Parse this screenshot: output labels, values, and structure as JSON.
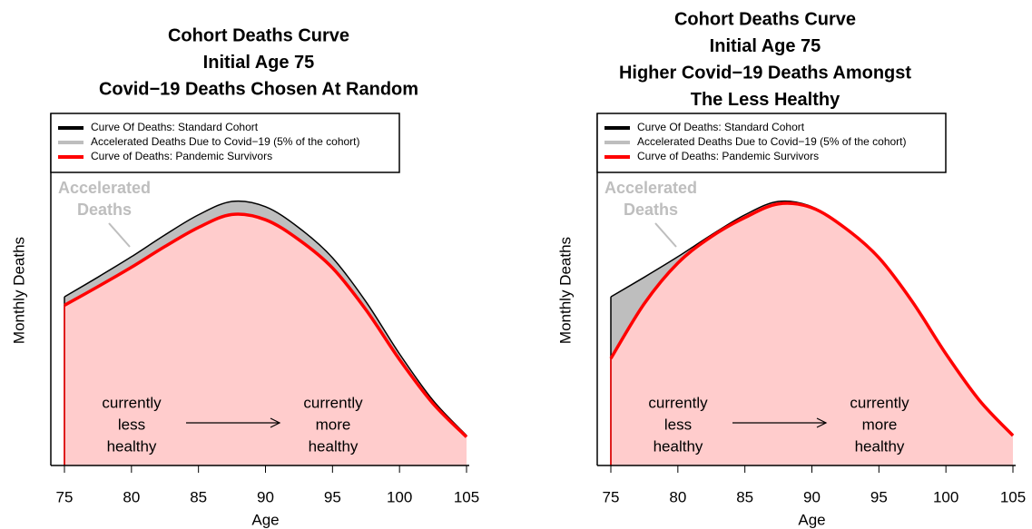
{
  "chart_data": [
    {
      "type": "area",
      "title": [
        "Cohort Deaths Curve",
        "Initial Age 75",
        "Covid−19 Deaths Chosen At Random"
      ],
      "xlabel": "Age",
      "ylabel": "Monthly Deaths",
      "x": [
        75,
        77.5,
        80,
        82.5,
        85,
        87.5,
        90,
        92.5,
        95,
        97.5,
        100,
        102.5,
        105
      ],
      "xlim": [
        75,
        105
      ],
      "xticks": [
        75,
        80,
        85,
        90,
        95,
        100,
        105
      ],
      "ylim": [
        0,
        100
      ],
      "series": [
        {
          "name": "Curve Of Deaths: Standard Cohort",
          "color": "#000000",
          "fill": "#bebebe",
          "values": [
            47.9,
            53.5,
            59.3,
            65.5,
            71.2,
            75.0,
            73.5,
            67.5,
            59.0,
            46.5,
            31.7,
            18.5,
            8.5
          ]
        },
        {
          "name": "Curve of Deaths: Pandemic Survivors",
          "color": "#ff0000",
          "fill": "#ffcccc",
          "values": [
            45.5,
            50.8,
            56.3,
            62.2,
            67.6,
            71.3,
            69.8,
            64.1,
            56.1,
            44.2,
            30.1,
            17.6,
            8.1
          ]
        }
      ],
      "fill_legend": {
        "name": "Accelerated Deaths Due to Covid−19 (5% of the cohort)",
        "color": "#bebebe"
      },
      "annotations": {
        "accelerated": [
          "Accelerated",
          "Deaths"
        ],
        "left": [
          "currently",
          "less",
          "healthy"
        ],
        "right": [
          "currently",
          "more",
          "healthy"
        ]
      }
    },
    {
      "type": "area",
      "title": [
        "Cohort Deaths Curve",
        "Initial Age 75",
        "Higher Covid−19 Deaths Amongst",
        "The Less Healthy"
      ],
      "xlabel": "Age",
      "ylabel": "Monthly Deaths",
      "x": [
        75,
        77.5,
        80,
        82.5,
        85,
        87.5,
        90,
        92.5,
        95,
        97.5,
        100,
        102.5,
        105
      ],
      "xlim": [
        75,
        105
      ],
      "xticks": [
        75,
        80,
        85,
        90,
        95,
        100,
        105
      ],
      "ylim": [
        0,
        100
      ],
      "series": [
        {
          "name": "Curve Of Deaths: Standard Cohort",
          "color": "#000000",
          "fill": "#bebebe",
          "values": [
            47.9,
            53.5,
            59.3,
            65.5,
            71.2,
            75.0,
            73.5,
            67.5,
            59.0,
            46.5,
            31.7,
            18.5,
            8.5
          ]
        },
        {
          "name": "Curve of Deaths: Pandemic Survivors",
          "color": "#ff0000",
          "fill": "#ffcccc",
          "values": [
            30.4,
            46.0,
            57.5,
            65.0,
            70.4,
            74.3,
            73.2,
            67.4,
            59.0,
            46.5,
            31.7,
            18.5,
            8.5
          ]
        }
      ],
      "fill_legend": {
        "name": "Accelerated Deaths Due to Covid−19 (5% of the cohort)",
        "color": "#bebebe"
      },
      "annotations": {
        "accelerated": [
          "Accelerated",
          "Deaths"
        ],
        "left": [
          "currently",
          "less",
          "healthy"
        ],
        "right": [
          "currently",
          "more",
          "healthy"
        ]
      }
    }
  ]
}
